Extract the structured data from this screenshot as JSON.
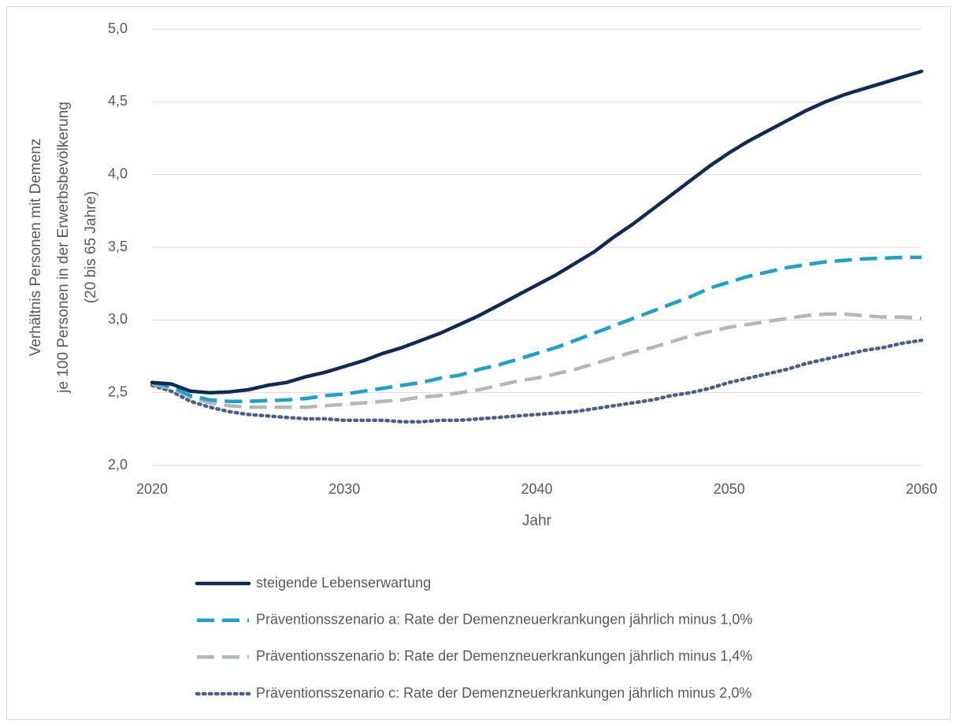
{
  "chart_data": {
    "type": "line",
    "ylabel": [
      "Verhältnis Personen mit Demenz",
      "je 100 Personen in der Erwerbsbevölkerung",
      "(20 bis 65 Jahre)"
    ],
    "xlabel": "Jahr",
    "x": [
      2020,
      2021,
      2022,
      2023,
      2024,
      2025,
      2026,
      2027,
      2028,
      2029,
      2030,
      2031,
      2032,
      2033,
      2034,
      2035,
      2036,
      2037,
      2038,
      2039,
      2040,
      2041,
      2042,
      2043,
      2044,
      2045,
      2046,
      2047,
      2048,
      2049,
      2050,
      2051,
      2052,
      2053,
      2054,
      2055,
      2056,
      2057,
      2058,
      2059,
      2060
    ],
    "series": [
      {
        "name": "steigende Lebenserwartung",
        "color": "#0f2a55",
        "style": "solid",
        "values": [
          2.57,
          2.56,
          2.51,
          2.5,
          2.505,
          2.52,
          2.55,
          2.57,
          2.61,
          2.64,
          2.68,
          2.72,
          2.77,
          2.81,
          2.86,
          2.91,
          2.97,
          3.03,
          3.1,
          3.17,
          3.24,
          3.31,
          3.39,
          3.47,
          3.57,
          3.66,
          3.76,
          3.86,
          3.96,
          4.06,
          4.15,
          4.23,
          4.3,
          4.37,
          4.44,
          4.5,
          4.55,
          4.59,
          4.63,
          4.67,
          4.71
        ]
      },
      {
        "name": "Präventionsszenario a: Rate der Demenzneuerkrankungen jährlich minus 1,0%",
        "color": "#1ba1cc",
        "style": "dashed",
        "values": [
          2.57,
          2.54,
          2.48,
          2.45,
          2.44,
          2.44,
          2.445,
          2.45,
          2.46,
          2.48,
          2.49,
          2.51,
          2.53,
          2.55,
          2.57,
          2.6,
          2.62,
          2.66,
          2.69,
          2.73,
          2.77,
          2.81,
          2.86,
          2.91,
          2.96,
          3.01,
          3.06,
          3.11,
          3.16,
          3.22,
          3.26,
          3.3,
          3.33,
          3.36,
          3.38,
          3.4,
          3.41,
          3.42,
          3.425,
          3.43,
          3.43
        ]
      },
      {
        "name": "Präventionsszenario b: Rate der Demenzneuerkrankungen jährlich minus 1,4%",
        "color": "#b4b6b8",
        "style": "dashed",
        "values": [
          2.56,
          2.53,
          2.47,
          2.43,
          2.41,
          2.4,
          2.4,
          2.4,
          2.4,
          2.41,
          2.42,
          2.43,
          2.44,
          2.45,
          2.47,
          2.48,
          2.5,
          2.52,
          2.55,
          2.58,
          2.6,
          2.63,
          2.66,
          2.7,
          2.74,
          2.78,
          2.81,
          2.85,
          2.89,
          2.92,
          2.95,
          2.97,
          2.99,
          3.01,
          3.03,
          3.04,
          3.04,
          3.03,
          3.02,
          3.02,
          3.01
        ]
      },
      {
        "name": "Präventionsszenario c: Rate der Demenzneuerkrankungen jährlich minus 2,0%",
        "color": "#4a6089",
        "style": "dotted",
        "values": [
          2.55,
          2.51,
          2.44,
          2.4,
          2.37,
          2.35,
          2.34,
          2.33,
          2.32,
          2.32,
          2.31,
          2.31,
          2.31,
          2.3,
          2.3,
          2.31,
          2.31,
          2.32,
          2.33,
          2.34,
          2.35,
          2.36,
          2.37,
          2.39,
          2.41,
          2.43,
          2.45,
          2.48,
          2.5,
          2.53,
          2.57,
          2.6,
          2.63,
          2.66,
          2.7,
          2.73,
          2.76,
          2.79,
          2.81,
          2.84,
          2.86
        ]
      }
    ],
    "xlim": [
      2020,
      2060
    ],
    "xticks": [
      2020,
      2030,
      2040,
      2050,
      2060
    ],
    "ylim": [
      2,
      5
    ],
    "yticks": [
      {
        "value": 2,
        "label": "2,0"
      },
      {
        "value": 2.5,
        "label": "2,5"
      },
      {
        "value": 3,
        "label": "3,0"
      },
      {
        "value": 3.5,
        "label": "3,5"
      },
      {
        "value": 4,
        "label": "4,0"
      },
      {
        "value": 4.5,
        "label": "4,5"
      },
      {
        "value": 5,
        "label": "5,0"
      }
    ],
    "grid": true,
    "legend": "bottom"
  }
}
